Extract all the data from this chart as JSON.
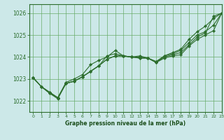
{
  "title": "Graphe pression niveau de la mer (hPa)",
  "bg_color": "#cce8e8",
  "grid_color": "#66aa66",
  "line_color": "#2d6e2d",
  "xlabel_color": "#1a4d1a",
  "xlim": [
    -0.5,
    23
  ],
  "ylim": [
    1021.5,
    1026.4
  ],
  "xticks": [
    0,
    1,
    2,
    3,
    4,
    5,
    6,
    7,
    8,
    9,
    10,
    11,
    12,
    13,
    14,
    15,
    16,
    17,
    18,
    19,
    20,
    21,
    22,
    23
  ],
  "yticks": [
    1022,
    1023,
    1024,
    1025,
    1026
  ],
  "series": [
    [
      1023.05,
      1022.65,
      1022.4,
      1022.15,
      1022.8,
      1022.9,
      1023.1,
      1023.35,
      1023.6,
      1023.9,
      1024.05,
      1024.05,
      1024.0,
      1023.95,
      1023.95,
      1023.75,
      1023.95,
      1024.05,
      1024.1,
      1024.5,
      1024.8,
      1025.0,
      1025.2,
      1026.0
    ],
    [
      1023.05,
      1022.65,
      1022.4,
      1022.15,
      1022.8,
      1022.9,
      1023.1,
      1023.35,
      1023.6,
      1023.9,
      1024.05,
      1024.05,
      1024.0,
      1023.95,
      1023.95,
      1023.75,
      1024.05,
      1024.15,
      1024.3,
      1024.65,
      1025.0,
      1025.15,
      1025.45,
      1026.0
    ],
    [
      1023.05,
      1022.65,
      1022.35,
      1022.15,
      1022.85,
      1023.0,
      1023.2,
      1023.65,
      1023.85,
      1024.0,
      1024.3,
      1024.05,
      1024.0,
      1024.0,
      1023.95,
      1023.8,
      1024.05,
      1024.2,
      1024.35,
      1024.8,
      1025.15,
      1025.4,
      1025.75,
      1026.0
    ],
    [
      1023.05,
      1022.65,
      1022.35,
      1022.1,
      1022.8,
      1022.9,
      1023.1,
      1023.35,
      1023.6,
      1024.05,
      1024.15,
      1024.05,
      1024.0,
      1024.05,
      1023.95,
      1023.75,
      1024.0,
      1024.1,
      1024.2,
      1024.55,
      1024.9,
      1025.1,
      1025.85,
      1026.0
    ]
  ]
}
